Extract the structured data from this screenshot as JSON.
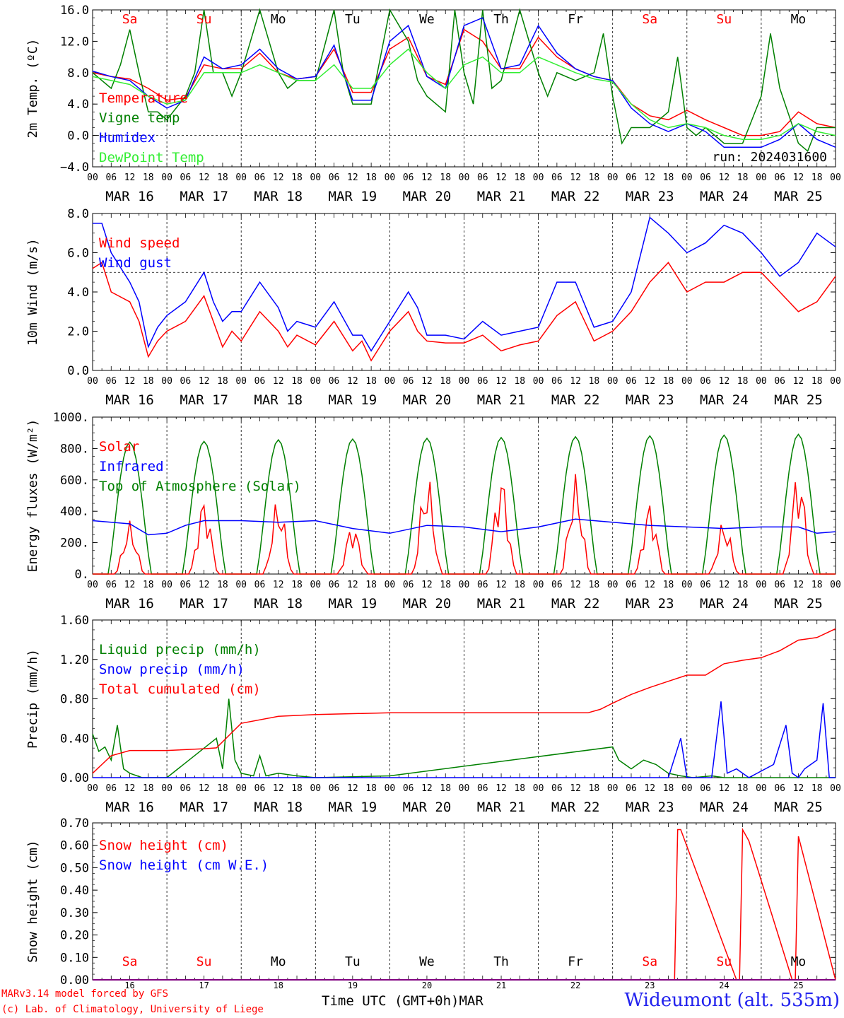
{
  "footer": {
    "model_line": "MARv3.14 model forced by GFS",
    "credit_line": "(c) Lab. of Climatology, University of Liege",
    "time_axis_label": "Time UTC (GMT+0h)MAR",
    "station": "Wideumont (alt. 535m)"
  },
  "colors": {
    "red": "#ff0000",
    "green": "#008000",
    "blue": "#0000ff",
    "lightgreen": "#33ee33",
    "purple": "#800080"
  },
  "chart_data": [
    {
      "id": "temperature",
      "type": "line",
      "ylabel": "2m Temp. (ºC)",
      "ylim": [
        -4,
        16
      ],
      "yticks": [
        "−4.0",
        "0.0",
        "4.0",
        "8.0",
        "12.0",
        "16.0"
      ],
      "hline": 0,
      "day_names": [
        {
          "label": "Sa",
          "weekend": true
        },
        {
          "label": "Su",
          "weekend": true
        },
        {
          "label": "Mo",
          "weekend": false
        },
        {
          "label": "Tu",
          "weekend": false
        },
        {
          "label": "We",
          "weekend": false
        },
        {
          "label": "Th",
          "weekend": false
        },
        {
          "label": "Fr",
          "weekend": false
        },
        {
          "label": "Sa",
          "weekend": true
        },
        {
          "label": "Su",
          "weekend": true
        },
        {
          "label": "Mo",
          "weekend": false
        }
      ],
      "run_label": "run: 2024031600",
      "legend": [
        "Temperature",
        "Vigne temp",
        "Humidex",
        "DewPoint Temp"
      ],
      "series": [
        {
          "name": "Temperature",
          "color": "red",
          "x": [
            0,
            6,
            12,
            18,
            24,
            30,
            36,
            42,
            48,
            54,
            60,
            66,
            72,
            78,
            84,
            90,
            96,
            102,
            108,
            114,
            120,
            126,
            132,
            138,
            144,
            150,
            156,
            162,
            168,
            174,
            180,
            186,
            192,
            198,
            204,
            210,
            216,
            222,
            228,
            234,
            240
          ],
          "y": [
            8,
            7.5,
            7.2,
            6,
            4.5,
            4.8,
            9,
            8.5,
            8.5,
            10.5,
            8,
            7.2,
            7.5,
            11,
            5.5,
            5.5,
            11,
            12.5,
            7.5,
            6.5,
            13.5,
            12,
            8.5,
            8.5,
            12.5,
            10,
            8.5,
            7.5,
            7,
            4,
            2.5,
            2,
            3.2,
            2,
            1,
            0,
            0,
            0.5,
            3,
            1.5,
            1
          ]
        },
        {
          "name": "Vigne temp",
          "color": "green",
          "x": [
            0,
            6,
            9,
            12,
            15,
            18,
            21,
            24,
            30,
            33,
            36,
            39,
            42,
            45,
            48,
            54,
            57,
            60,
            63,
            66,
            72,
            78,
            81,
            84,
            90,
            96,
            102,
            105,
            108,
            114,
            117,
            120,
            123,
            126,
            129,
            132,
            138,
            141,
            144,
            147,
            150,
            156,
            162,
            165,
            168,
            171,
            174,
            180,
            186,
            189,
            192,
            195,
            198,
            204,
            210,
            213,
            216,
            219,
            222,
            228,
            231,
            234,
            240
          ],
          "y": [
            8,
            6,
            9,
            13.5,
            8,
            3,
            3,
            2,
            5,
            8,
            16,
            8,
            8,
            5,
            8,
            16,
            12,
            8,
            6,
            7,
            7,
            16,
            8,
            4,
            4,
            16,
            12,
            7,
            5,
            3,
            16,
            8,
            4,
            16,
            6,
            7,
            16,
            12,
            8,
            5,
            8,
            7,
            8,
            13,
            5,
            -1,
            1,
            1,
            3,
            10,
            1,
            0,
            1,
            -1,
            -1,
            2,
            5,
            13,
            6,
            -1,
            -2,
            1,
            1
          ]
        },
        {
          "name": "Humidex",
          "color": "blue",
          "x": [
            0,
            6,
            12,
            18,
            24,
            30,
            36,
            42,
            48,
            54,
            60,
            66,
            72,
            78,
            84,
            90,
            96,
            102,
            108,
            114,
            120,
            126,
            132,
            138,
            144,
            150,
            156,
            162,
            168,
            174,
            180,
            186,
            192,
            198,
            204,
            210,
            216,
            222,
            228,
            234,
            240
          ],
          "y": [
            8.2,
            7.5,
            7,
            5,
            3.5,
            4.5,
            10,
            8.5,
            9,
            11,
            8.5,
            7.2,
            7.5,
            11.5,
            4.5,
            4.5,
            12,
            14,
            7.5,
            6,
            14,
            15,
            8.5,
            9,
            14,
            10.5,
            8.5,
            7.5,
            7,
            3.5,
            1.5,
            0.5,
            1.5,
            0.5,
            -1.5,
            -1.5,
            -1.5,
            -0.5,
            1.5,
            -0.5,
            -1.5
          ]
        },
        {
          "name": "DewPoint Temp",
          "color": "lightgreen",
          "x": [
            0,
            6,
            12,
            18,
            24,
            30,
            36,
            42,
            48,
            54,
            60,
            66,
            72,
            78,
            84,
            90,
            96,
            102,
            108,
            114,
            120,
            126,
            132,
            138,
            144,
            150,
            156,
            162,
            168,
            174,
            180,
            186,
            192,
            198,
            204,
            210,
            216,
            222,
            228,
            234,
            240
          ],
          "y": [
            7.5,
            7,
            6.5,
            5,
            4,
            4.5,
            8,
            8,
            8,
            9,
            8,
            7,
            7,
            9,
            6,
            6,
            9,
            11,
            8,
            6,
            9,
            10,
            8,
            8,
            10,
            9,
            8,
            7.2,
            6.8,
            4,
            2,
            1,
            1.5,
            1,
            0,
            -0.5,
            -0.5,
            0,
            1.5,
            0.5,
            0
          ]
        }
      ]
    },
    {
      "id": "wind",
      "type": "line",
      "ylabel": "10m Wind (m/s)",
      "ylim": [
        0,
        8
      ],
      "yticks": [
        "0.0",
        "2.0",
        "4.0",
        "6.0",
        "8.0"
      ],
      "hline": 5,
      "legend": [
        "Wind speed",
        "Wind gust"
      ],
      "series": [
        {
          "name": "Wind speed",
          "color": "red",
          "x": [
            0,
            3,
            6,
            12,
            15,
            18,
            21,
            24,
            30,
            36,
            39,
            42,
            45,
            48,
            54,
            60,
            63,
            66,
            72,
            78,
            84,
            87,
            90,
            96,
            102,
            105,
            108,
            114,
            120,
            126,
            132,
            138,
            144,
            150,
            156,
            162,
            168,
            174,
            180,
            186,
            192,
            198,
            204,
            210,
            216,
            222,
            228,
            234,
            240
          ],
          "y": [
            5.2,
            5.5,
            4,
            3.5,
            2.5,
            0.7,
            1.5,
            2,
            2.5,
            3.8,
            2.5,
            1.2,
            2,
            1.5,
            3,
            2,
            1.2,
            1.8,
            1.3,
            2.5,
            1,
            1.5,
            0.5,
            2,
            3,
            2,
            1.5,
            1.4,
            1.4,
            1.8,
            1,
            1.3,
            1.5,
            2.8,
            3.5,
            1.5,
            2,
            3,
            4.5,
            5.5,
            4,
            4.5,
            4.5,
            5,
            5,
            4,
            3,
            3.5,
            4.8
          ]
        },
        {
          "name": "Wind gust",
          "color": "blue",
          "x": [
            0,
            3,
            6,
            12,
            15,
            18,
            21,
            24,
            30,
            36,
            39,
            42,
            45,
            48,
            54,
            60,
            63,
            66,
            72,
            78,
            84,
            87,
            90,
            96,
            102,
            105,
            108,
            114,
            120,
            126,
            132,
            138,
            144,
            150,
            156,
            162,
            168,
            174,
            180,
            186,
            192,
            198,
            204,
            210,
            216,
            222,
            228,
            234,
            240
          ],
          "y": [
            7.5,
            7.5,
            6,
            4.5,
            3.5,
            1.2,
            2.2,
            2.8,
            3.5,
            5,
            3.5,
            2.5,
            3,
            3,
            4.5,
            3.2,
            2,
            2.5,
            2.2,
            3.5,
            1.8,
            1.8,
            1,
            2.5,
            4,
            3.2,
            1.8,
            1.8,
            1.6,
            2.5,
            1.8,
            2,
            2.2,
            4.5,
            4.5,
            2.2,
            2.5,
            4,
            7.8,
            7,
            6,
            6.5,
            7.4,
            7,
            6,
            4.8,
            5.5,
            7,
            6.3
          ]
        }
      ]
    },
    {
      "id": "energy",
      "type": "line",
      "ylabel": "Energy fluxes (W/m²)",
      "ylim": [
        0,
        1000
      ],
      "yticks": [
        "0.",
        "200.",
        "400.",
        "600.",
        "800.",
        "1000."
      ],
      "legend": [
        "Solar",
        "Infrared",
        "Top of Atmosphere (Solar)"
      ],
      "toa_peaks": [
        840,
        845,
        855,
        860,
        865,
        870,
        875,
        880,
        885,
        890
      ],
      "solar_peaks": [
        340,
        500,
        490,
        330,
        650,
        655,
        640,
        470,
        350,
        685
      ],
      "infrared": {
        "name": "Infrared",
        "color": "blue",
        "x": [
          0,
          12,
          18,
          24,
          30,
          36,
          48,
          60,
          72,
          84,
          96,
          108,
          120,
          132,
          144,
          156,
          168,
          180,
          192,
          204,
          216,
          228,
          234,
          240
        ],
        "y": [
          340,
          320,
          250,
          260,
          310,
          340,
          340,
          330,
          340,
          290,
          260,
          310,
          300,
          270,
          300,
          350,
          330,
          310,
          300,
          290,
          300,
          300,
          260,
          270
        ]
      }
    },
    {
      "id": "precip",
      "type": "line",
      "ylabel": "Precip (mm/h)",
      "ylim": [
        0,
        1.8
      ],
      "yticks": [
        "0.00",
        "0.40",
        "0.80",
        "1.20",
        "1.60"
      ],
      "legend": [
        "Liquid precip (mm/h)",
        "Snow precip (mm/h)",
        "Total cumulated (cm)"
      ],
      "series": [
        {
          "name": "Liquid precip (mm/h)",
          "color": "green",
          "x": [
            0,
            2,
            4,
            6,
            8,
            10,
            12,
            16,
            24,
            40,
            42,
            44,
            46,
            48,
            52,
            54,
            56,
            60,
            66,
            72,
            96,
            168,
            170,
            174,
            178,
            182,
            186,
            190,
            194,
            200,
            204,
            240
          ],
          "y": [
            0.5,
            0.3,
            0.35,
            0.2,
            0.6,
            0.1,
            0.05,
            0,
            0,
            0.45,
            0.1,
            0.9,
            0.2,
            0.05,
            0.02,
            0.25,
            0.02,
            0.05,
            0.02,
            0,
            0.02,
            0.35,
            0.2,
            0.1,
            0.2,
            0.15,
            0.05,
            0.02,
            0,
            0.02,
            0,
            0
          ]
        },
        {
          "name": "Snow precip (mm/h)",
          "color": "blue",
          "x": [
            0,
            186,
            190,
            192,
            196,
            200,
            203,
            205,
            208,
            212,
            220,
            224,
            226,
            228,
            230,
            234,
            236,
            238,
            240
          ],
          "y": [
            0,
            0,
            0.45,
            0,
            0,
            0,
            0.87,
            0.05,
            0.1,
            0,
            0.15,
            0.6,
            0.05,
            0,
            0.1,
            0.2,
            0.85,
            0,
            0
          ]
        },
        {
          "name": "Total cumulated (cm)",
          "color": "red",
          "x": [
            0,
            6,
            12,
            24,
            36,
            40,
            46,
            48,
            60,
            72,
            96,
            120,
            144,
            160,
            164,
            168,
            174,
            180,
            186,
            192,
            198,
            204,
            210,
            216,
            222,
            228,
            234,
            240
          ],
          "y": [
            0.05,
            0.25,
            0.31,
            0.31,
            0.33,
            0.34,
            0.55,
            0.62,
            0.7,
            0.72,
            0.74,
            0.74,
            0.74,
            0.74,
            0.78,
            0.85,
            0.95,
            1.03,
            1.1,
            1.17,
            1.17,
            1.3,
            1.34,
            1.37,
            1.45,
            1.57,
            1.6,
            1.7
          ]
        }
      ]
    },
    {
      "id": "snow",
      "type": "line",
      "ylabel": "Snow height (cm)",
      "ylim": [
        0,
        0.7
      ],
      "yticks": [
        "0.00",
        "0.10",
        "0.20",
        "0.30",
        "0.40",
        "0.50",
        "0.60",
        "0.70"
      ],
      "legend": [
        "Snow height (cm)",
        "Snow height (cm W.E.)"
      ],
      "day_names": [
        "Sa",
        "Su",
        "Mo",
        "Tu",
        "We",
        "Th",
        "Fr",
        "Sa",
        "Su",
        "Mo"
      ],
      "day_numbers": [
        "16",
        "17",
        "18",
        "19",
        "20",
        "21",
        "22",
        "23",
        "24",
        "25"
      ],
      "series": [
        {
          "name": "Snow height (cm)",
          "color": "red",
          "x": [
            0,
            188,
            189,
            190,
            208,
            209,
            210,
            212,
            226,
            227,
            228,
            240
          ],
          "y": [
            0,
            0,
            0.67,
            0.67,
            0,
            0,
            0.67,
            0.62,
            0,
            0,
            0.64,
            0
          ]
        },
        {
          "name": "Snow height (cm W.E.)",
          "color": "blue",
          "x": [
            0,
            240
          ],
          "y": [
            0,
            0
          ]
        }
      ]
    }
  ],
  "x_axis": {
    "date_labels": [
      "MAR 16",
      "MAR 17",
      "MAR 18",
      "MAR 19",
      "MAR 20",
      "MAR 21",
      "MAR 22",
      "MAR 23",
      "MAR 24",
      "MAR 25"
    ],
    "hour_labels": [
      "00",
      "06",
      "12",
      "18"
    ],
    "end_label": "00"
  }
}
